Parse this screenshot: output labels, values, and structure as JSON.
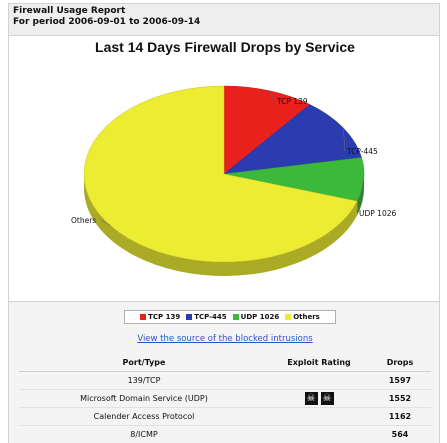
{
  "report": {
    "title": "Firewall Usage Report",
    "period": "For period 2006-09-01 to 2006-09-14"
  },
  "chart_data": {
    "type": "pie",
    "title": "Last 14 Days Firewall Drops by Service",
    "slices": [
      {
        "label": "TCP 139",
        "value": 0.105,
        "color": "#e8211c"
      },
      {
        "label": "TCP-445",
        "value": 0.115,
        "color": "#2b3bb0"
      },
      {
        "label": "UDP 1026",
        "value": 0.08,
        "color": "#3cb83a"
      },
      {
        "label": "Others",
        "value": 0.7,
        "color": "#ecec33"
      }
    ],
    "legend": [
      "TCP 139",
      "TCP-445",
      "UDP 1026",
      "Others"
    ],
    "legend_placement": "bottom"
  },
  "link": {
    "source_label": "View the source of the blocked intrusions"
  },
  "table": {
    "headers": {
      "port": "Port/Type",
      "rating": "Exploit Rating",
      "drops": "Drops"
    },
    "rows": [
      {
        "port": "139/TCP",
        "skulls": 0,
        "drops": "1597"
      },
      {
        "port": "Microsoft Domain Service (UDP)",
        "skulls": 2,
        "drops": "1552"
      },
      {
        "port": "Calender Access Protocol",
        "skulls": 0,
        "drops": "1162"
      },
      {
        "port": "8/ICMP",
        "skulls": 0,
        "drops": "564"
      }
    ],
    "skull_glyph": "☠"
  }
}
